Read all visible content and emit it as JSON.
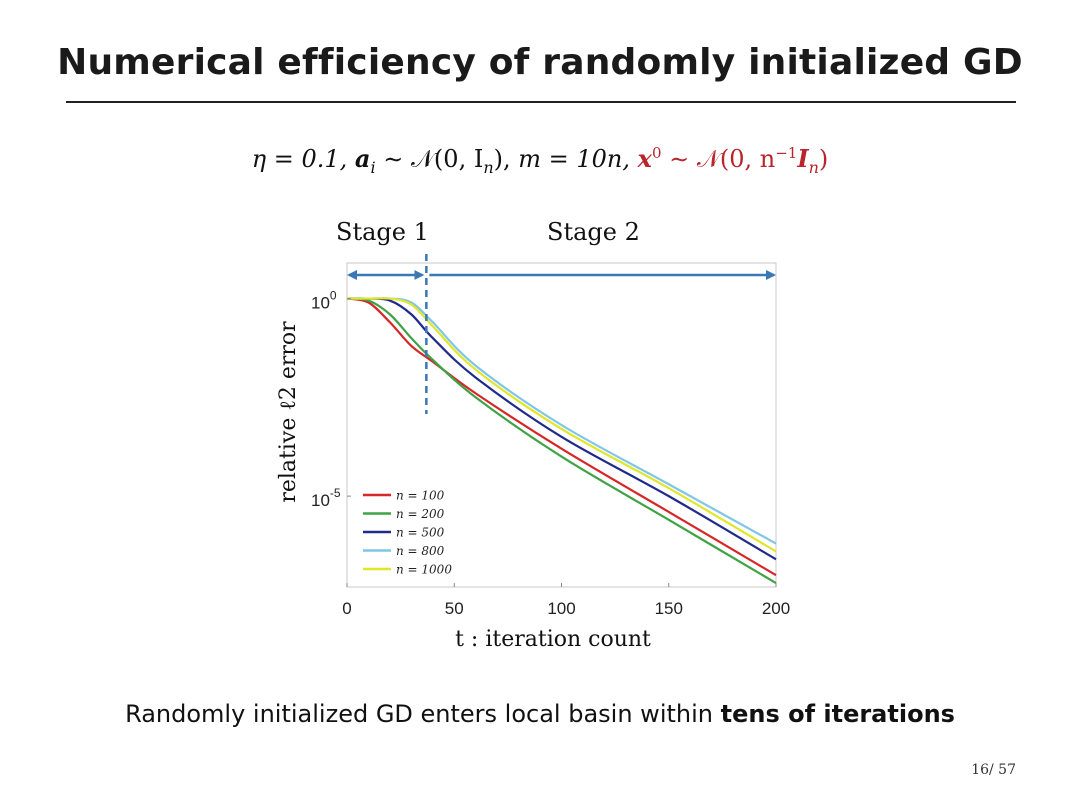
{
  "slide": {
    "title": "Numerical efficiency of randomly initialized GD",
    "params": {
      "eta": "η = 0.1,",
      "a": "a",
      "a_sub": "i",
      "a_dist": " ∼ 𝒩(0, I",
      "a_dist_sub": "n",
      "a_dist_end": "),",
      "m": " m = 10n,",
      "x0": " x",
      "x0_sup": "0",
      "x0_dist": " ∼ 𝒩(0, n",
      "x0_dist_sup": "−1",
      "x0_dist_mid": "I",
      "x0_dist_sub": "n",
      "x0_dist_end": ")"
    },
    "caption_plain": "Randomly initialized GD enters local basin within ",
    "caption_bold": "tens of iterations",
    "page_number": "16/ 57"
  },
  "colors": {
    "stage_arrow": "#3a78b5",
    "stage_divider": "#3a78b5",
    "params_red": "#b8252a"
  },
  "chart_data": {
    "type": "line",
    "xlabel": "t : iteration count",
    "ylabel": "relative ℓ2 error",
    "xlim": [
      0,
      200
    ],
    "yscale": "log",
    "ylim_exponent": [
      -7.3,
      0.9
    ],
    "x_ticks": [
      "0",
      "50",
      "100",
      "150",
      "200"
    ],
    "y_ticks": [
      {
        "base": "10",
        "exp": "0",
        "value": 0
      },
      {
        "base": "10",
        "exp": "-5",
        "value": -5
      }
    ],
    "stage_divider_x": 37,
    "stage_labels": [
      "Stage 1",
      "Stage 2"
    ],
    "legend_position": "bottom-left",
    "series": [
      {
        "name": "n = 100",
        "color": "#d62728",
        "x": [
          0,
          10,
          20,
          30,
          40,
          60,
          100,
          150,
          200
        ],
        "log10_y": [
          0,
          -0.1,
          -0.6,
          -1.2,
          -1.6,
          -2.4,
          -3.8,
          -5.4,
          -7.0
        ]
      },
      {
        "name": "n = 200",
        "color": "#3fa345",
        "x": [
          0,
          10,
          20,
          30,
          40,
          60,
          100,
          150,
          200
        ],
        "log10_y": [
          0,
          -0.05,
          -0.4,
          -1.0,
          -1.55,
          -2.5,
          -4.0,
          -5.6,
          -7.2
        ]
      },
      {
        "name": "n = 500",
        "color": "#1f2a8a",
        "x": [
          0,
          10,
          20,
          30,
          40,
          60,
          100,
          150,
          200
        ],
        "log10_y": [
          0,
          0,
          -0.05,
          -0.4,
          -1.0,
          -2.0,
          -3.5,
          -5.0,
          -6.6
        ]
      },
      {
        "name": "n = 800",
        "color": "#7fc6e6",
        "x": [
          0,
          10,
          20,
          30,
          40,
          60,
          100,
          150,
          200
        ],
        "log10_y": [
          0,
          0,
          0,
          -0.1,
          -0.6,
          -1.7,
          -3.2,
          -4.7,
          -6.2
        ]
      },
      {
        "name": "n = 1000",
        "color": "#e0e62a",
        "x": [
          0,
          10,
          20,
          30,
          40,
          60,
          100,
          150,
          200
        ],
        "log10_y": [
          0,
          0,
          0,
          -0.15,
          -0.7,
          -1.8,
          -3.3,
          -4.8,
          -6.4
        ]
      }
    ]
  }
}
